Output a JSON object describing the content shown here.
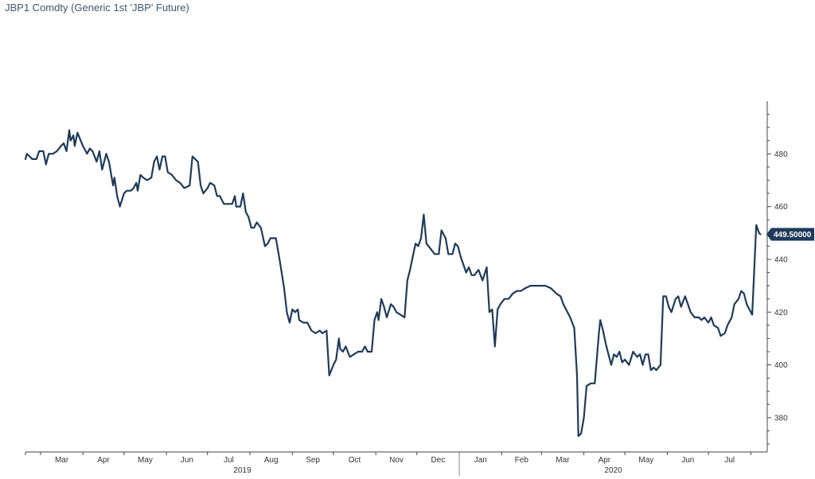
{
  "chart_data": {
    "type": "line",
    "title": "JBP1 Comdty (Generic 1st 'JBP' Future)",
    "x_unit": "date",
    "y_ticks": [
      380,
      400,
      420,
      440,
      460,
      480
    ],
    "ylim": [
      367,
      500
    ],
    "month_labels": [
      "Mar",
      "Apr",
      "May",
      "Jun",
      "Jul",
      "Aug",
      "Sep",
      "Oct",
      "Nov",
      "Dec",
      "Jan",
      "Feb",
      "Mar",
      "Apr",
      "May",
      "Jun",
      "Jul"
    ],
    "year_labels": [
      "2019",
      "2020"
    ],
    "last_value_label": "449.50000",
    "last_value": 449.5,
    "line_color": "#1f3a5a",
    "grid": false,
    "series": [
      {
        "values": [
          [
            "2019-02-18",
            478
          ],
          [
            "2019-02-19",
            480
          ],
          [
            "2019-02-21",
            479
          ],
          [
            "2019-02-23",
            478
          ],
          [
            "2019-02-26",
            478
          ],
          [
            "2019-02-28",
            481
          ],
          [
            "2019-03-03",
            481
          ],
          [
            "2019-03-05",
            476
          ],
          [
            "2019-03-07",
            480
          ],
          [
            "2019-03-10",
            480
          ],
          [
            "2019-03-13",
            481
          ],
          [
            "2019-03-16",
            483
          ],
          [
            "2019-03-18",
            484
          ],
          [
            "2019-03-20",
            481
          ],
          [
            "2019-03-22",
            489
          ],
          [
            "2019-03-23",
            485
          ],
          [
            "2019-03-25",
            487
          ],
          [
            "2019-03-26",
            483
          ],
          [
            "2019-03-28",
            488
          ],
          [
            "2019-04-01",
            483
          ],
          [
            "2019-04-04",
            480
          ],
          [
            "2019-04-06",
            482
          ],
          [
            "2019-04-08",
            481
          ],
          [
            "2019-04-11",
            477
          ],
          [
            "2019-04-13",
            481
          ],
          [
            "2019-04-15",
            474
          ],
          [
            "2019-04-18",
            480
          ],
          [
            "2019-04-20",
            477
          ],
          [
            "2019-04-23",
            468
          ],
          [
            "2019-04-24",
            471
          ],
          [
            "2019-04-26",
            464
          ],
          [
            "2019-04-28",
            460
          ],
          [
            "2019-05-01",
            465
          ],
          [
            "2019-05-03",
            466
          ],
          [
            "2019-05-06",
            466
          ],
          [
            "2019-05-08",
            467
          ],
          [
            "2019-05-10",
            469
          ],
          [
            "2019-05-11",
            466
          ],
          [
            "2019-05-13",
            472
          ],
          [
            "2019-05-15",
            471
          ],
          [
            "2019-05-18",
            470
          ],
          [
            "2019-05-21",
            471
          ],
          [
            "2019-05-23",
            477
          ],
          [
            "2019-05-25",
            479
          ],
          [
            "2019-05-27",
            474
          ],
          [
            "2019-05-29",
            479
          ],
          [
            "2019-05-31",
            479
          ],
          [
            "2019-06-02",
            473
          ],
          [
            "2019-06-05",
            472
          ],
          [
            "2019-06-08",
            470
          ],
          [
            "2019-06-11",
            469
          ],
          [
            "2019-06-14",
            467
          ],
          [
            "2019-06-18",
            468
          ],
          [
            "2019-06-20",
            479
          ],
          [
            "2019-06-22",
            478
          ],
          [
            "2019-06-24",
            477
          ],
          [
            "2019-06-26",
            468
          ],
          [
            "2019-06-28",
            465
          ],
          [
            "2019-07-01",
            467
          ],
          [
            "2019-07-03",
            469
          ],
          [
            "2019-07-06",
            468
          ],
          [
            "2019-07-08",
            464
          ],
          [
            "2019-07-10",
            464
          ],
          [
            "2019-07-13",
            461
          ],
          [
            "2019-07-16",
            461
          ],
          [
            "2019-07-19",
            461
          ],
          [
            "2019-07-21",
            464
          ],
          [
            "2019-07-22",
            460
          ],
          [
            "2019-07-25",
            460
          ],
          [
            "2019-07-27",
            465
          ],
          [
            "2019-07-29",
            458
          ],
          [
            "2019-07-31",
            456
          ],
          [
            "2019-08-02",
            452
          ],
          [
            "2019-08-04",
            452
          ],
          [
            "2019-08-06",
            454
          ],
          [
            "2019-08-09",
            452
          ],
          [
            "2019-08-12",
            445
          ],
          [
            "2019-08-14",
            446
          ],
          [
            "2019-08-16",
            448
          ],
          [
            "2019-08-18",
            448
          ],
          [
            "2019-08-20",
            448
          ],
          [
            "2019-08-23",
            439
          ],
          [
            "2019-08-26",
            429
          ],
          [
            "2019-08-28",
            420
          ],
          [
            "2019-08-30",
            416
          ],
          [
            "2019-09-01",
            421
          ],
          [
            "2019-09-03",
            420
          ],
          [
            "2019-09-05",
            421
          ],
          [
            "2019-09-06",
            417
          ],
          [
            "2019-09-09",
            416
          ],
          [
            "2019-09-12",
            416
          ],
          [
            "2019-09-15",
            413
          ],
          [
            "2019-09-18",
            412
          ],
          [
            "2019-09-21",
            413
          ],
          [
            "2019-09-23",
            412
          ],
          [
            "2019-09-26",
            413
          ],
          [
            "2019-09-28",
            396
          ],
          [
            "2019-10-01",
            400
          ],
          [
            "2019-10-03",
            402
          ],
          [
            "2019-10-05",
            410
          ],
          [
            "2019-10-06",
            406
          ],
          [
            "2019-10-08",
            405
          ],
          [
            "2019-10-10",
            407
          ],
          [
            "2019-10-13",
            403
          ],
          [
            "2019-10-16",
            404
          ],
          [
            "2019-10-19",
            405
          ],
          [
            "2019-10-22",
            405
          ],
          [
            "2019-10-24",
            407
          ],
          [
            "2019-10-26",
            405
          ],
          [
            "2019-10-29",
            405
          ],
          [
            "2019-10-31",
            417
          ],
          [
            "2019-11-02",
            420
          ],
          [
            "2019-11-03",
            417
          ],
          [
            "2019-11-05",
            425
          ],
          [
            "2019-11-07",
            422
          ],
          [
            "2019-11-09",
            418
          ],
          [
            "2019-11-12",
            423
          ],
          [
            "2019-11-14",
            422
          ],
          [
            "2019-11-16",
            420
          ],
          [
            "2019-11-19",
            419
          ],
          [
            "2019-11-22",
            418
          ],
          [
            "2019-11-24",
            432
          ],
          [
            "2019-11-26",
            436
          ],
          [
            "2019-11-28",
            441
          ],
          [
            "2019-11-30",
            446
          ],
          [
            "2019-12-02",
            445
          ],
          [
            "2019-12-04",
            448
          ],
          [
            "2019-12-06",
            457
          ],
          [
            "2019-12-08",
            446
          ],
          [
            "2019-12-11",
            444
          ],
          [
            "2019-12-14",
            442
          ],
          [
            "2019-12-17",
            442
          ],
          [
            "2019-12-19",
            451
          ],
          [
            "2019-12-22",
            448
          ],
          [
            "2019-12-24",
            442
          ],
          [
            "2019-12-27",
            442
          ],
          [
            "2019-12-29",
            446
          ],
          [
            "2019-12-31",
            445
          ],
          [
            "2020-01-02",
            441
          ],
          [
            "2020-01-04",
            438
          ],
          [
            "2020-01-06",
            435
          ],
          [
            "2020-01-08",
            437
          ],
          [
            "2020-01-10",
            434
          ],
          [
            "2020-01-12",
            434
          ],
          [
            "2020-01-15",
            436
          ],
          [
            "2020-01-18",
            432
          ],
          [
            "2020-01-21",
            437
          ],
          [
            "2020-01-23",
            420
          ],
          [
            "2020-01-25",
            421
          ],
          [
            "2020-01-27",
            407
          ],
          [
            "2020-01-29",
            421
          ],
          [
            "2020-01-31",
            423
          ],
          [
            "2020-02-03",
            425
          ],
          [
            "2020-02-06",
            425
          ],
          [
            "2020-02-09",
            427
          ],
          [
            "2020-02-12",
            428
          ],
          [
            "2020-02-15",
            428
          ],
          [
            "2020-02-18",
            429
          ],
          [
            "2020-02-22",
            430
          ],
          [
            "2020-03-04",
            430
          ],
          [
            "2020-03-08",
            429
          ],
          [
            "2020-03-12",
            427
          ],
          [
            "2020-03-15",
            426
          ],
          [
            "2020-03-17",
            423
          ],
          [
            "2020-03-19",
            421
          ],
          [
            "2020-03-22",
            418
          ],
          [
            "2020-03-25",
            414
          ],
          [
            "2020-03-27",
            396
          ],
          [
            "2020-03-28",
            373
          ],
          [
            "2020-03-30",
            374
          ],
          [
            "2020-04-01",
            380
          ],
          [
            "2020-04-03",
            392
          ],
          [
            "2020-04-06",
            393
          ],
          [
            "2020-04-09",
            393
          ],
          [
            "2020-04-12",
            412
          ],
          [
            "2020-04-13",
            417
          ],
          [
            "2020-04-15",
            413
          ],
          [
            "2020-04-17",
            408
          ],
          [
            "2020-04-19",
            404
          ],
          [
            "2020-04-21",
            400
          ],
          [
            "2020-04-23",
            404
          ],
          [
            "2020-04-25",
            403
          ],
          [
            "2020-04-27",
            405
          ],
          [
            "2020-04-29",
            401
          ],
          [
            "2020-05-01",
            402
          ],
          [
            "2020-05-04",
            400
          ],
          [
            "2020-05-07",
            405
          ],
          [
            "2020-05-10",
            403
          ],
          [
            "2020-05-12",
            404
          ],
          [
            "2020-05-14",
            400
          ],
          [
            "2020-05-16",
            404
          ],
          [
            "2020-05-18",
            404
          ],
          [
            "2020-05-20",
            398
          ],
          [
            "2020-05-22",
            399
          ],
          [
            "2020-05-24",
            398
          ],
          [
            "2020-05-27",
            400
          ],
          [
            "2020-05-29",
            426
          ],
          [
            "2020-05-31",
            426
          ],
          [
            "2020-06-02",
            422
          ],
          [
            "2020-06-04",
            420
          ],
          [
            "2020-06-07",
            425
          ],
          [
            "2020-06-09",
            426
          ],
          [
            "2020-06-11",
            422
          ],
          [
            "2020-06-14",
            426
          ],
          [
            "2020-06-16",
            423
          ],
          [
            "2020-06-18",
            420
          ],
          [
            "2020-06-21",
            418
          ],
          [
            "2020-06-24",
            418
          ],
          [
            "2020-06-26",
            417
          ],
          [
            "2020-06-28",
            418
          ],
          [
            "2020-07-01",
            416
          ],
          [
            "2020-07-03",
            418
          ],
          [
            "2020-07-05",
            415
          ],
          [
            "2020-07-08",
            414
          ],
          [
            "2020-07-10",
            411
          ],
          [
            "2020-07-13",
            412
          ],
          [
            "2020-07-15",
            415
          ],
          [
            "2020-07-18",
            418
          ],
          [
            "2020-07-20",
            423
          ],
          [
            "2020-07-23",
            425
          ],
          [
            "2020-07-25",
            428
          ],
          [
            "2020-07-27",
            427
          ],
          [
            "2020-07-29",
            423
          ],
          [
            "2020-07-31",
            421
          ],
          [
            "2020-08-02",
            419
          ],
          [
            "2020-08-05",
            453
          ],
          [
            "2020-08-07",
            450
          ],
          [
            "2020-08-08",
            449.5
          ]
        ]
      }
    ]
  }
}
